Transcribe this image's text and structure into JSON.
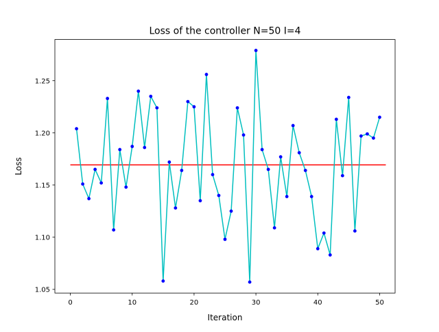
{
  "chart_data": {
    "type": "line",
    "title": "Loss of the controller N=50 I=4",
    "xlabel": "Iteration",
    "ylabel": "Loss",
    "xlim": [
      -2.5,
      52.5
    ],
    "ylim": [
      1.0465,
      1.2895
    ],
    "xticks": [
      0,
      10,
      20,
      30,
      40,
      50
    ],
    "xtick_labels": [
      "0",
      "10",
      "20",
      "30",
      "40",
      "50"
    ],
    "yticks": [
      1.05,
      1.1,
      1.15,
      1.2,
      1.25
    ],
    "ytick_labels": [
      "1.05",
      "1.10",
      "1.15",
      "1.20",
      "1.25"
    ],
    "grid": false,
    "x": [
      1,
      2,
      3,
      4,
      5,
      6,
      7,
      8,
      9,
      10,
      11,
      12,
      13,
      14,
      15,
      16,
      17,
      18,
      19,
      20,
      21,
      22,
      23,
      24,
      25,
      26,
      27,
      28,
      29,
      30,
      31,
      32,
      33,
      34,
      35,
      36,
      37,
      38,
      39,
      40,
      41,
      42,
      43,
      44,
      45,
      46,
      47,
      48,
      49,
      50
    ],
    "series": [
      {
        "values": [
          1.204,
          1.151,
          1.137,
          1.165,
          1.152,
          1.233,
          1.107,
          1.184,
          1.148,
          1.187,
          1.24,
          1.186,
          1.235,
          1.224,
          1.058,
          1.172,
          1.128,
          1.164,
          1.23,
          1.225,
          1.135,
          1.256,
          1.16,
          1.14,
          1.098,
          1.125,
          1.224,
          1.198,
          1.057,
          1.279,
          1.184,
          1.165,
          1.109,
          1.177,
          1.139,
          1.207,
          1.181,
          1.164,
          1.139,
          1.089,
          1.104,
          1.083,
          1.213,
          1.159,
          1.234,
          1.106,
          1.197,
          1.199,
          1.195,
          1.215
        ],
        "line_color": "#00bfbf",
        "marker_color": "#0000ff"
      }
    ],
    "mean_line": {
      "value": 1.1693,
      "x_range": [
        0,
        51
      ],
      "color": "#ff0000"
    }
  }
}
